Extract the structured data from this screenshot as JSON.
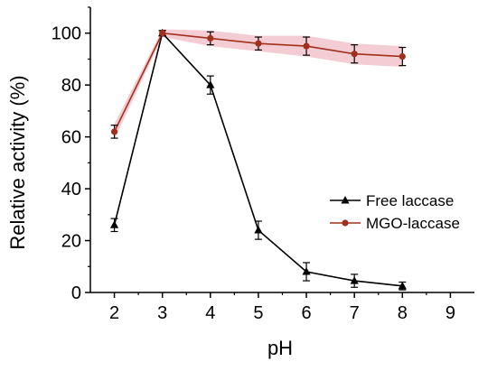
{
  "chart_data": {
    "type": "line",
    "title": "",
    "xlabel": "pH",
    "ylabel": "Relative activity (%)",
    "xlim": [
      1.5,
      9.5
    ],
    "ylim": [
      0,
      110
    ],
    "xticks": [
      2,
      3,
      4,
      5,
      6,
      7,
      8,
      9
    ],
    "yticks": [
      0,
      20,
      40,
      60,
      80,
      100
    ],
    "x": [
      2,
      3,
      4,
      5,
      6,
      7,
      8
    ],
    "grid": false,
    "legend_position": "center-right",
    "series": [
      {
        "name": "Free laccase",
        "marker": "triangle",
        "color": "#000000",
        "values": [
          26,
          100,
          80,
          24,
          8,
          4.5,
          2.5
        ],
        "errors": [
          2.5,
          1,
          3.5,
          3.5,
          3.5,
          2.5,
          1.5
        ]
      },
      {
        "name": "MGO-laccase",
        "marker": "circle",
        "color": "#a0301c",
        "band_color": "#f2c4cc",
        "values": [
          62,
          100,
          98,
          96,
          95,
          92,
          91
        ],
        "errors": [
          2.5,
          1,
          2.5,
          2.5,
          3.5,
          3.5,
          3.5
        ]
      }
    ]
  }
}
